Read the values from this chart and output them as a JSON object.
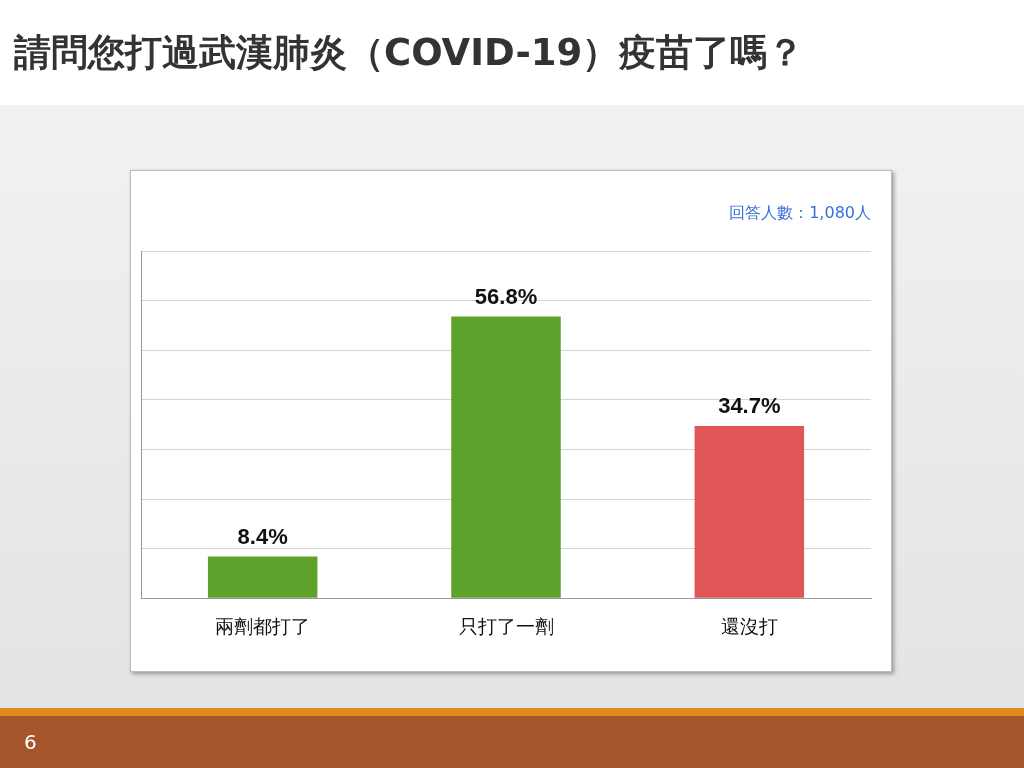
{
  "chart_data": {
    "type": "bar",
    "title": "請問您打過武漢肺炎（COVID-19）疫苗了嗎？",
    "categories": [
      "兩劑都打了",
      "只打了一劑",
      "還沒打"
    ],
    "values": [
      8.4,
      56.8,
      34.7
    ],
    "colors": [
      "#5ea22c",
      "#5ea22c",
      "#e05656"
    ],
    "value_labels": [
      "8.4%",
      "56.8%",
      "34.7%"
    ],
    "ylim": [
      0,
      70
    ],
    "yticks": [
      {
        "value": 0,
        "label": null
      },
      {
        "value": 10,
        "label": null
      },
      {
        "value": 20,
        "label": null
      },
      {
        "value": 30,
        "label": null
      },
      {
        "value": 40,
        "label": null
      },
      {
        "value": 50,
        "label": null
      },
      {
        "value": 60,
        "label": null
      },
      {
        "value": 70,
        "label": null
      }
    ],
    "tick_labels": "x",
    "grid": "y",
    "legend": false,
    "annotations": [
      "回答人數：1,080人",
      "6"
    ]
  }
}
